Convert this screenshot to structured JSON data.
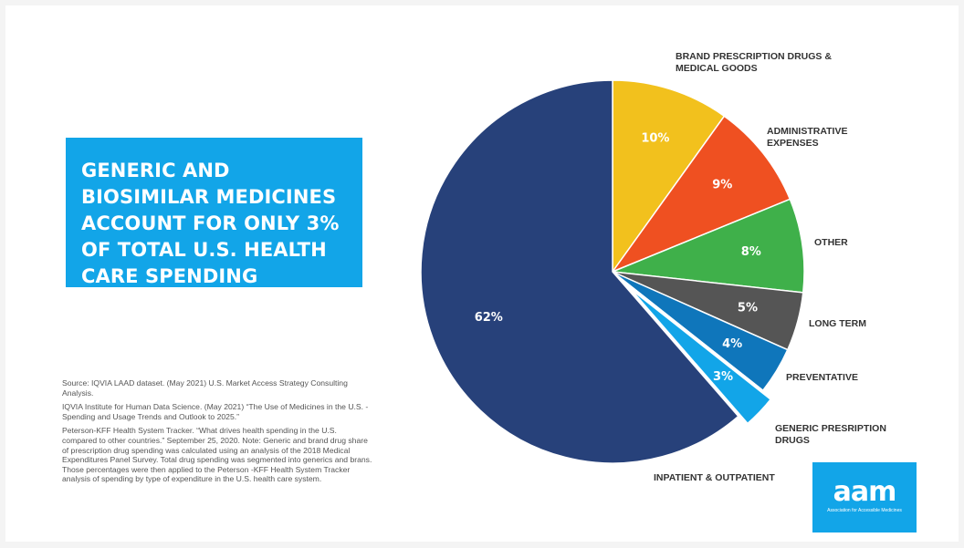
{
  "title": "GENERIC AND BIOSIMILAR MEDICINES ACCOUNT FOR ONLY 3% OF TOTAL U.S. HEALTH CARE SPENDING",
  "sources": [
    "Source: IQVIA LAAD dataset. (May 2021) U.S. Market Access Strategy Consulting Analysis.",
    "IQVIA Institute for Human Data Science. (May 2021) “The Use of Medicines in the U.S. - Spending and Usage Trends and Outlook to 2025.”",
    "Peterson-KFF Health System Tracker. “What drives health spending in the U.S. compared to other countries.” September 25, 2020. Note: Generic and brand drug share of prescription drug spending was calculated using an analysis of the 2018 Medical Expenditures Panel Survey. Total drug spending was segmented into generics and brans. Those percentages were then applied to the Peterson -KFF Health System Tracker analysis of spending by type of expenditure in the U.S. health care system."
  ],
  "logo": {
    "word": "aam",
    "tagline": "Association for Accessible Medicines"
  },
  "colors": {
    "title_bg": "#12a5e8",
    "logo_bg": "#12a5e8"
  },
  "chart_data": {
    "type": "pie",
    "unit": "%",
    "start": "12 o'clock",
    "direction": "clockwise",
    "slices": [
      {
        "category": "BRAND PRESCRIPTION DRUGS & MEDICAL GOODS",
        "value": 10,
        "label": "10%",
        "color": "#f2c11d"
      },
      {
        "category": "ADMINISTRATIVE EXPENSES",
        "value": 9,
        "label": "9%",
        "color": "#ef5021"
      },
      {
        "category": "OTHER",
        "value": 8,
        "label": "8%",
        "color": "#3fb04a"
      },
      {
        "category": "LONG TERM",
        "value": 5,
        "label": "5%",
        "color": "#555555"
      },
      {
        "category": "PREVENTATIVE",
        "value": 4,
        "label": "4%",
        "color": "#0f76bb"
      },
      {
        "category": "GENERIC PRESRIPTION DRUGS",
        "value": 3,
        "label": "3%",
        "color": "#12a5e8",
        "exploded": true
      },
      {
        "category": "INPATIENT & OUTPATIENT",
        "value": 62,
        "label": "62%",
        "color": "#27417a"
      }
    ]
  }
}
